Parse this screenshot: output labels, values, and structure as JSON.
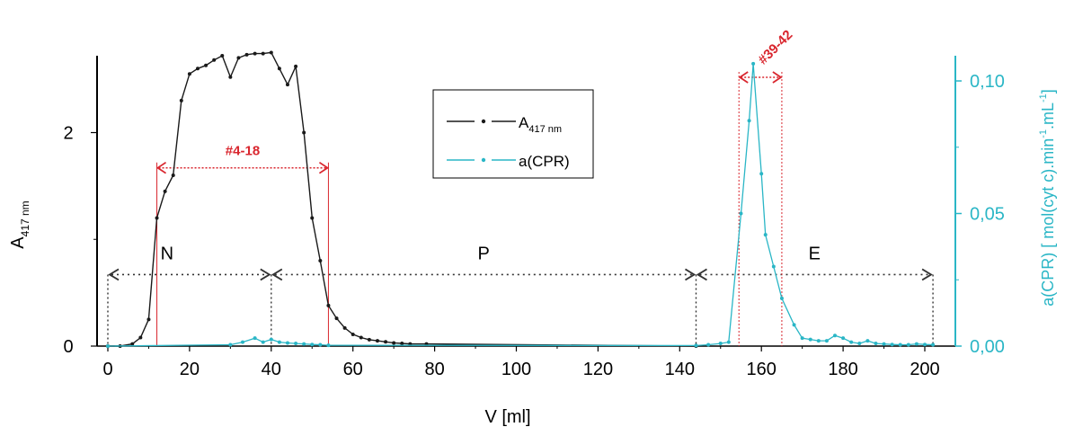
{
  "chart_data": {
    "type": "line",
    "xlabel": "V [ml]",
    "ylabel_main": "A",
    "ylabel_sub": "417 nm",
    "ylabel_right": "a(CPR) [ mol(cyt c).min",
    "ylabel_right_sup1": "-1",
    "ylabel_right_mid": ".mL",
    "ylabel_right_sup2": "-1",
    "ylabel_right_end": "]",
    "x_ticks": [
      "0",
      "20",
      "40",
      "60",
      "80",
      "100",
      "120",
      "140",
      "160",
      "180",
      "200"
    ],
    "y_ticks_left": [
      "0",
      "2"
    ],
    "y_ticks_right": [
      "0,00",
      "0,05",
      "0,10"
    ],
    "xlim": [
      0,
      203
    ],
    "ylim_left": [
      0,
      2.72
    ],
    "ylim_right": [
      0,
      0.1095
    ],
    "legend": {
      "placement": "top-center",
      "entries": [
        {
          "label_main": "A",
          "label_sub": "417 nm",
          "color": "#1a1a1a"
        },
        {
          "label_main": "a(CPR)",
          "label_sub": "",
          "color": "#2ab6c6"
        }
      ]
    },
    "annotations": {
      "fraction_ranges": [
        {
          "label": "#4-18",
          "x_start": 12,
          "x_end": 54,
          "y_level": 1.67
        },
        {
          "label": "#39-42",
          "x_start": 154.5,
          "x_end": 165,
          "y_level": 2.55
        }
      ],
      "regions": [
        {
          "label": "N",
          "x_start": 0,
          "x_end": 40
        },
        {
          "label": "P",
          "x_start": 40,
          "x_end": 144
        },
        {
          "label": "E",
          "x_start": 144,
          "x_end": 202
        }
      ],
      "region_arrow_y": 0.67
    },
    "colors": {
      "series1": "#1a1a1a",
      "series2": "#2ab6c6",
      "annotation": "#d9262e",
      "region": "#333333"
    },
    "series": [
      {
        "name": "A417 nm",
        "axis": "left",
        "x": [
          0,
          3,
          6,
          8,
          10,
          12,
          14,
          16,
          18,
          20,
          22,
          24,
          26,
          28,
          30,
          32,
          34,
          36,
          38,
          40,
          42,
          44,
          46,
          48,
          50,
          52,
          54,
          56,
          58,
          60,
          62,
          64,
          66,
          68,
          70,
          72,
          74,
          78,
          144
        ],
        "y": [
          0,
          0,
          0.02,
          0.08,
          0.25,
          1.2,
          1.45,
          1.6,
          2.3,
          2.55,
          2.6,
          2.63,
          2.68,
          2.72,
          2.52,
          2.7,
          2.73,
          2.74,
          2.74,
          2.75,
          2.6,
          2.45,
          2.62,
          2.0,
          1.2,
          0.8,
          0.38,
          0.26,
          0.17,
          0.11,
          0.08,
          0.06,
          0.05,
          0.04,
          0.03,
          0.025,
          0.02,
          0.02,
          0.0
        ]
      },
      {
        "name": "a(CPR)",
        "axis": "right",
        "x": [
          0,
          30,
          33,
          36,
          38,
          40,
          42,
          44,
          46,
          48,
          50,
          52,
          54,
          144,
          147,
          150,
          152,
          155,
          157,
          158,
          160,
          161,
          163,
          165,
          168,
          170,
          172,
          174,
          176,
          178,
          180,
          182,
          184,
          186,
          188,
          190,
          192,
          194,
          196,
          198,
          200,
          202
        ],
        "y": [
          0,
          0.0005,
          0.0015,
          0.003,
          0.0015,
          0.0025,
          0.0015,
          0.0012,
          0.001,
          0.0008,
          0.0006,
          0.0005,
          0.0003,
          0.0002,
          0.0005,
          0.001,
          0.0015,
          0.05,
          0.085,
          0.1065,
          0.065,
          0.042,
          0.03,
          0.018,
          0.008,
          0.003,
          0.0025,
          0.002,
          0.002,
          0.004,
          0.003,
          0.0015,
          0.001,
          0.002,
          0.001,
          0.0008,
          0.0006,
          0.0005,
          0.0005,
          0.0008,
          0.0006,
          0.0005
        ]
      }
    ]
  }
}
